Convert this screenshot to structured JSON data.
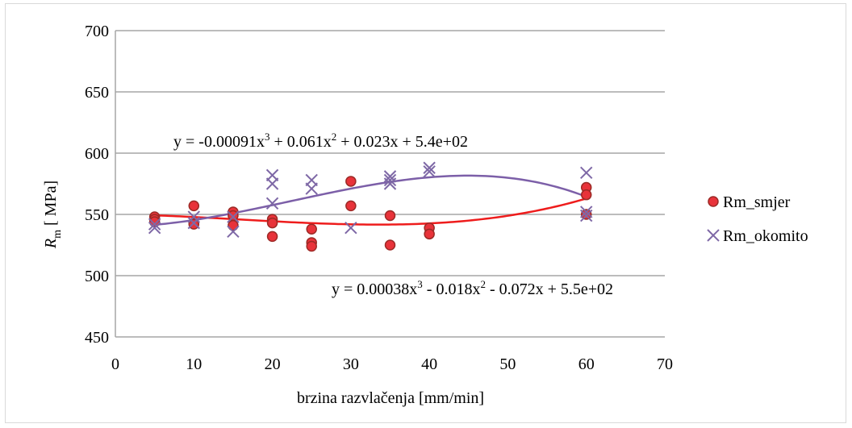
{
  "chart_data": {
    "type": "scatter",
    "title": "",
    "xlabel": "brzina razvlačenja [mm/min]",
    "ylabel": {
      "symbol": "R",
      "subscript": "m",
      "unit": " [ MPa]"
    },
    "xlim": [
      0,
      70
    ],
    "ylim": [
      450,
      700
    ],
    "xticks": [
      0,
      10,
      20,
      30,
      40,
      50,
      60,
      70
    ],
    "yticks": [
      450,
      500,
      550,
      600,
      650,
      700
    ],
    "grid": "horizontal",
    "legend": "right",
    "series": [
      {
        "name": "Rm_smjer",
        "marker": "circle",
        "color": "#e8333a",
        "stroke": "#9c2a26",
        "points": [
          [
            5,
            548
          ],
          [
            5,
            546
          ],
          [
            5,
            544
          ],
          [
            10,
            557
          ],
          [
            10,
            543
          ],
          [
            10,
            542
          ],
          [
            15,
            552
          ],
          [
            15,
            549
          ],
          [
            15,
            541
          ],
          [
            20,
            546
          ],
          [
            20,
            543
          ],
          [
            20,
            532
          ],
          [
            25,
            538
          ],
          [
            25,
            527
          ],
          [
            25,
            524
          ],
          [
            30,
            577
          ],
          [
            30,
            557
          ],
          [
            35,
            549
          ],
          [
            35,
            525
          ],
          [
            40,
            539
          ],
          [
            40,
            534
          ],
          [
            60,
            572
          ],
          [
            60,
            566
          ],
          [
            60,
            550
          ]
        ],
        "trendline": {
          "label": {
            "base": "y = 0.00038x",
            "e1": "3",
            "mid": " - 0.018x",
            "e2": "2",
            "tail": " - 0.072x + 5.5e+02"
          },
          "coefficients": [
            550,
            -0.072,
            -0.018,
            0.00038
          ],
          "color": "#ee1c1c",
          "x_range": [
            5,
            60
          ]
        }
      },
      {
        "name": "Rm_okomito",
        "marker": "x",
        "color": "#7e68a6",
        "points": [
          [
            5,
            542
          ],
          [
            5,
            539
          ],
          [
            10,
            548
          ],
          [
            10,
            543
          ],
          [
            15,
            548
          ],
          [
            15,
            536
          ],
          [
            20,
            582
          ],
          [
            20,
            575
          ],
          [
            20,
            559
          ],
          [
            25,
            578
          ],
          [
            25,
            571
          ],
          [
            30,
            539
          ],
          [
            35,
            581
          ],
          [
            35,
            578
          ],
          [
            35,
            575
          ],
          [
            40,
            588
          ],
          [
            40,
            585
          ],
          [
            60,
            584
          ],
          [
            60,
            552
          ],
          [
            60,
            549
          ]
        ],
        "trendline": {
          "label": {
            "base": "y = -0.00091x",
            "e1": "3",
            "mid": " + 0.061x",
            "e2": "2",
            "tail": " + 0.023x + 5.4e+02"
          },
          "coefficients": [
            540,
            0.023,
            0.061,
            -0.00091
          ],
          "color": "#7c5fa8",
          "x_range": [
            5,
            60
          ]
        }
      }
    ]
  }
}
